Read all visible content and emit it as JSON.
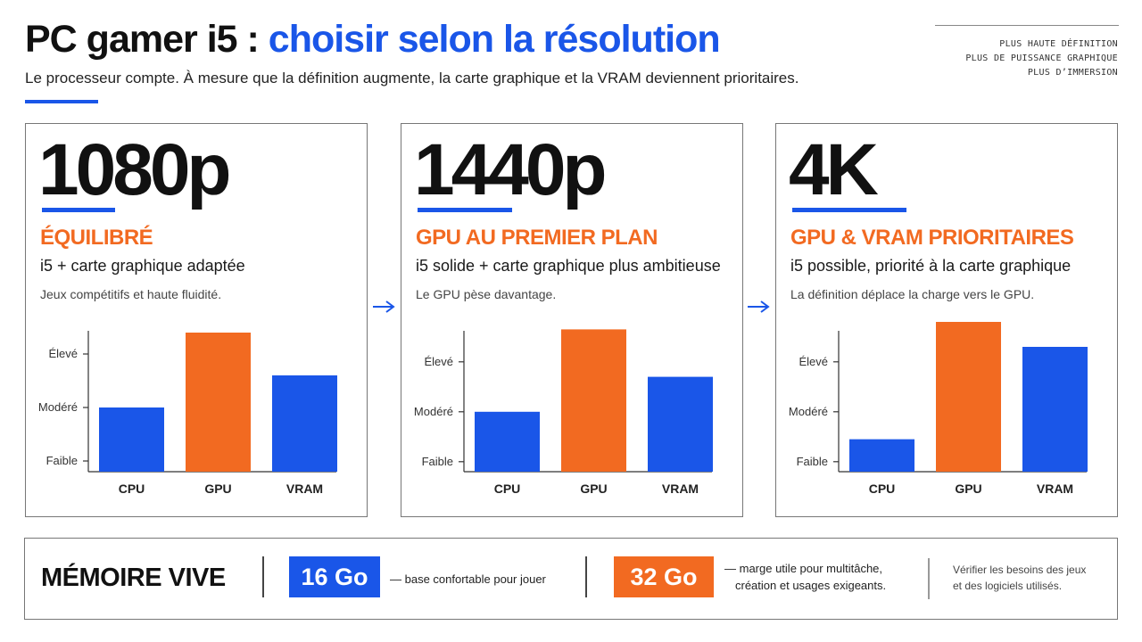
{
  "header": {
    "title_part1": "PC gamer i5 :",
    "title_part2": "choisir selon la résolution",
    "subtitle": "Le processeur compte. À mesure que la définition augmente, la carte graphique et la VRAM deviennent prioritaires.",
    "tagline": [
      "PLUS HAUTE DÉFINITION",
      "PLUS DE PUISSANCE GRAPHIQUE",
      "PLUS D’IMMERSION"
    ]
  },
  "colors": {
    "blue": "#1a56e8",
    "orange": "#f26a21",
    "text": "#111111"
  },
  "panels": [
    {
      "resolution": "1080p",
      "label": "ÉQUILIBRÉ",
      "description": "i5 + carte graphique adaptée",
      "note": "Jeux compétitifs et haute fluidité."
    },
    {
      "resolution": "1440p",
      "label": "GPU AU PREMIER PLAN",
      "description": "i5 solide + carte graphique plus ambitieuse",
      "note": "Le GPU pèse davantage."
    },
    {
      "resolution": "4K",
      "label": "GPU & VRAM PRIORITAIRES",
      "description": "i5 possible, priorité à la carte graphique",
      "note": "La définition déplace la charge vers le GPU."
    }
  ],
  "chart_data": [
    {
      "type": "bar",
      "categories": [
        "CPU",
        "GPU",
        "VRAM"
      ],
      "values": [
        1.0,
        2.4,
        1.6
      ],
      "colors": [
        "#1a56e8",
        "#f26a21",
        "#1a56e8"
      ],
      "y_ticks": [
        "Faible",
        "Modéré",
        "Élevé"
      ],
      "y_tick_values": [
        0,
        1,
        2
      ],
      "ylim": [
        -0.2,
        2.6
      ]
    },
    {
      "type": "bar",
      "categories": [
        "CPU",
        "GPU",
        "VRAM"
      ],
      "values": [
        1.0,
        2.65,
        1.7
      ],
      "colors": [
        "#1a56e8",
        "#f26a21",
        "#1a56e8"
      ],
      "y_ticks": [
        "Faible",
        "Modéré",
        "Élevé"
      ],
      "y_tick_values": [
        0,
        1,
        2
      ],
      "ylim": [
        -0.2,
        2.8
      ]
    },
    {
      "type": "bar",
      "categories": [
        "CPU",
        "GPU",
        "VRAM"
      ],
      "values": [
        0.45,
        2.8,
        2.3
      ],
      "colors": [
        "#1a56e8",
        "#f26a21",
        "#1a56e8"
      ],
      "y_ticks": [
        "Faible",
        "Modéré",
        "Élevé"
      ],
      "y_tick_values": [
        0,
        1,
        2
      ],
      "ylim": [
        -0.2,
        2.8
      ]
    }
  ],
  "memory": {
    "title": "MÉMOIRE VIVE",
    "option1": {
      "amount": "16 Go",
      "note": "— base confortable pour jouer"
    },
    "option2": {
      "amount": "32 Go",
      "note_line1": "— marge utile pour multitâche,",
      "note_line2": "création et usages exigeants."
    },
    "advice_line1": "Vérifier les besoins des jeux",
    "advice_line2": "et des logiciels utilisés."
  }
}
